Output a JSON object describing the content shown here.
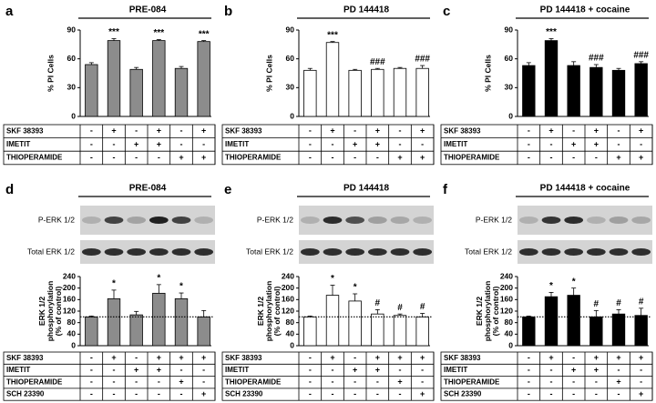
{
  "chart_data": [
    {
      "type": "bar",
      "panel": "a",
      "title": "PRE-084",
      "ylabel": "% PI Cells",
      "color": "#8c8c8c",
      "values": [
        54,
        79,
        49,
        79,
        50,
        78
      ],
      "errors": [
        2,
        2,
        2,
        1,
        2,
        1
      ],
      "annotations": [
        null,
        "***",
        null,
        "***",
        null,
        "***"
      ],
      "ylim": [
        0,
        90
      ],
      "yticks": [
        0,
        30,
        60,
        90
      ],
      "treatments": [
        {
          "name": "SKF 38393",
          "marks": [
            "-",
            "+",
            "-",
            "+",
            "-",
            "+"
          ]
        },
        {
          "name": "IMETIT",
          "marks": [
            "-",
            "-",
            "+",
            "+",
            "-",
            "-"
          ]
        },
        {
          "name": "THIOPERAMIDE",
          "marks": [
            "-",
            "-",
            "-",
            "-",
            "+",
            "+"
          ]
        }
      ]
    },
    {
      "type": "bar",
      "panel": "b",
      "title": "PD 144418",
      "ylabel": "% PI Cells",
      "color": "#ffffff",
      "values": [
        48,
        77,
        48,
        49,
        50,
        50
      ],
      "errors": [
        2,
        1,
        1,
        1,
        1,
        3
      ],
      "annotations": [
        null,
        "***",
        null,
        "###",
        null,
        "###"
      ],
      "ylim": [
        0,
        90
      ],
      "yticks": [
        0,
        30,
        60,
        90
      ],
      "treatments": [
        {
          "name": "SKF 38393",
          "marks": [
            "-",
            "+",
            "-",
            "+",
            "-",
            "+"
          ]
        },
        {
          "name": "IMETIT",
          "marks": [
            "-",
            "-",
            "+",
            "+",
            "-",
            "-"
          ]
        },
        {
          "name": "THIOPERAMIDE",
          "marks": [
            "-",
            "-",
            "-",
            "-",
            "+",
            "+"
          ]
        }
      ]
    },
    {
      "type": "bar",
      "panel": "c",
      "title": "PD 144418 + cocaine",
      "ylabel": "% PI Cells",
      "color": "#000000",
      "values": [
        53,
        79,
        53,
        51,
        48,
        55
      ],
      "errors": [
        3,
        2,
        4,
        3,
        2,
        2
      ],
      "annotations": [
        null,
        "***",
        null,
        "###",
        null,
        "###"
      ],
      "ylim": [
        0,
        90
      ],
      "yticks": [
        0,
        30,
        60,
        90
      ],
      "treatments": [
        {
          "name": "SKF 38393",
          "marks": [
            "-",
            "+",
            "-",
            "+",
            "-",
            "+"
          ]
        },
        {
          "name": "IMETIT",
          "marks": [
            "-",
            "-",
            "+",
            "+",
            "-",
            "-"
          ]
        },
        {
          "name": "THIOPERAMIDE",
          "marks": [
            "-",
            "-",
            "-",
            "-",
            "+",
            "+"
          ]
        }
      ]
    },
    {
      "type": "bar",
      "panel": "d",
      "title": "PRE-084",
      "ylabel": "ERK 1/2 phosphorylation (% of control)",
      "color": "#8c8c8c",
      "blot_labels": [
        "P-ERK 1/2",
        "Total ERK 1/2"
      ],
      "reference_line": 100,
      "values": [
        100,
        163,
        107,
        182,
        163,
        100
      ],
      "errors": [
        3,
        30,
        12,
        30,
        20,
        22
      ],
      "annotations": [
        null,
        "*",
        null,
        "*",
        "*",
        null
      ],
      "ylim": [
        0,
        240
      ],
      "yticks": [
        0,
        40,
        80,
        120,
        160,
        200,
        240
      ],
      "treatments": [
        {
          "name": "SKF 38393",
          "marks": [
            "-",
            "+",
            "-",
            "+",
            "+",
            "+"
          ]
        },
        {
          "name": "IMETIT",
          "marks": [
            "-",
            "-",
            "+",
            "+",
            "-",
            "-"
          ]
        },
        {
          "name": "THIOPERAMIDE",
          "marks": [
            "-",
            "-",
            "-",
            "-",
            "+",
            "-"
          ]
        },
        {
          "name": "SCH 23390",
          "marks": [
            "-",
            "-",
            "-",
            "-",
            "-",
            "+"
          ]
        }
      ]
    },
    {
      "type": "bar",
      "panel": "e",
      "title": "PD 144418",
      "ylabel": "ERK 1/2 phosphorylation (% of control)",
      "color": "#ffffff",
      "blot_labels": [
        "P-ERK 1/2",
        "Total ERK 1/2"
      ],
      "reference_line": 100,
      "values": [
        100,
        175,
        155,
        110,
        105,
        100
      ],
      "errors": [
        3,
        35,
        25,
        15,
        5,
        12
      ],
      "annotations": [
        null,
        "*",
        "*",
        "#",
        "#",
        "#"
      ],
      "ylim": [
        0,
        240
      ],
      "yticks": [
        0,
        40,
        80,
        120,
        160,
        200,
        240
      ],
      "treatments": [
        {
          "name": "SKF 38393",
          "marks": [
            "-",
            "+",
            "-",
            "+",
            "+",
            "+"
          ]
        },
        {
          "name": "IMETIT",
          "marks": [
            "-",
            "-",
            "+",
            "+",
            "-",
            "-"
          ]
        },
        {
          "name": "THIOPERAMIDE",
          "marks": [
            "-",
            "-",
            "-",
            "-",
            "+",
            "-"
          ]
        },
        {
          "name": "SCH 23390",
          "marks": [
            "-",
            "-",
            "-",
            "-",
            "-",
            "+"
          ]
        }
      ]
    },
    {
      "type": "bar",
      "panel": "f",
      "title": "PD 144418 + cocaine",
      "ylabel": "ERK 1/2 phosphorylation (% of control)",
      "color": "#000000",
      "blot_labels": [
        "P-ERK 1/2",
        "Total ERK 1/2"
      ],
      "reference_line": 100,
      "values": [
        100,
        170,
        175,
        100,
        110,
        105
      ],
      "errors": [
        3,
        15,
        25,
        22,
        15,
        25
      ],
      "annotations": [
        null,
        "*",
        "*",
        "#",
        "#",
        "#"
      ],
      "ylim": [
        0,
        240
      ],
      "yticks": [
        0,
        40,
        80,
        120,
        160,
        200,
        240
      ],
      "treatments": [
        {
          "name": "SKF 38393",
          "marks": [
            "-",
            "+",
            "-",
            "+",
            "+",
            "+"
          ]
        },
        {
          "name": "IMETIT",
          "marks": [
            "-",
            "-",
            "+",
            "+",
            "-",
            "-"
          ]
        },
        {
          "name": "THIOPERAMIDE",
          "marks": [
            "-",
            "-",
            "-",
            "-",
            "+",
            "-"
          ]
        },
        {
          "name": "SCH 23390",
          "marks": [
            "-",
            "-",
            "-",
            "-",
            "-",
            "+"
          ]
        }
      ]
    }
  ]
}
